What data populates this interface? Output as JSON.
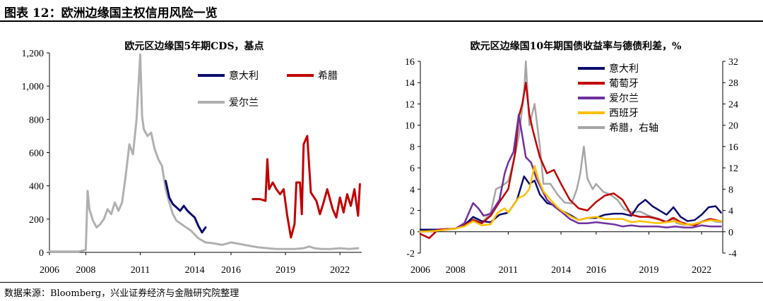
{
  "header": {
    "title": "图表 12：欧洲边缘国主权信用风险一览"
  },
  "footer": {
    "source": "数据来源：Bloomberg，兴业证券经济与金融研究院整理"
  },
  "chart_data": [
    {
      "type": "line",
      "title": "欧元区边缘国5年期CDS，基点",
      "x_ticks": [
        "2006",
        "2008",
        "2011",
        "2014",
        "2016",
        "2019",
        "2022"
      ],
      "xlim": [
        2006,
        2023.2
      ],
      "ylim": [
        0,
        1200
      ],
      "y_ticks": [
        "0",
        "200",
        "400",
        "600",
        "800",
        "1,000",
        "1,200"
      ],
      "legend": {
        "placement": "top-right",
        "layout": "two-column"
      },
      "series": [
        {
          "name": "意大利",
          "color": "#0c0c6e",
          "x": [
            2012.4,
            2012.6,
            2012.8,
            2013.0,
            2013.2,
            2013.4,
            2013.6,
            2013.8,
            2014.0,
            2014.2,
            2014.4,
            2014.6
          ],
          "y": [
            430,
            330,
            290,
            270,
            250,
            280,
            250,
            230,
            210,
            160,
            120,
            150
          ]
        },
        {
          "name": "希腊",
          "color": "#c00000",
          "x": [
            2017.2,
            2017.6,
            2017.9,
            2018.0,
            2018.1,
            2018.3,
            2018.5,
            2018.7,
            2018.9,
            2019.1,
            2019.3,
            2019.5,
            2019.6,
            2019.8,
            2019.9,
            2020.0,
            2020.2,
            2020.4,
            2020.7,
            2020.9,
            2021.1,
            2021.3,
            2021.6,
            2021.8,
            2022.0,
            2022.2,
            2022.4,
            2022.6,
            2022.8,
            2023.0,
            2023.1
          ],
          "y": [
            320,
            320,
            310,
            560,
            380,
            420,
            380,
            350,
            380,
            220,
            90,
            170,
            420,
            420,
            230,
            650,
            700,
            360,
            310,
            230,
            300,
            380,
            260,
            210,
            330,
            240,
            350,
            280,
            380,
            220,
            410
          ]
        },
        {
          "name": "爱尔兰",
          "color": "#b0b0b0",
          "x": [
            2006.0,
            2007.0,
            2007.6,
            2008.0,
            2008.1,
            2008.2,
            2008.4,
            2008.6,
            2008.8,
            2009.0,
            2009.2,
            2009.4,
            2009.6,
            2009.8,
            2010.0,
            2010.2,
            2010.4,
            2010.6,
            2010.8,
            2011.0,
            2011.1,
            2011.2,
            2011.4,
            2011.6,
            2011.8,
            2012.0,
            2012.2,
            2012.4,
            2012.6,
            2012.8,
            2013.0,
            2013.4,
            2013.8,
            2014.2,
            2014.6,
            2015.0,
            2015.5,
            2016.0,
            2016.5,
            2017.0,
            2017.5,
            2018.0,
            2018.5,
            2019.0,
            2019.5,
            2020.0,
            2020.3,
            2020.6,
            2021.0,
            2021.5,
            2022.0,
            2022.5,
            2023.0
          ],
          "y": [
            5,
            5,
            5,
            15,
            370,
            260,
            190,
            150,
            170,
            200,
            260,
            230,
            300,
            250,
            300,
            460,
            650,
            590,
            800,
            1190,
            820,
            740,
            700,
            720,
            620,
            560,
            520,
            380,
            300,
            230,
            190,
            160,
            130,
            85,
            60,
            55,
            45,
            60,
            50,
            40,
            30,
            25,
            20,
            20,
            20,
            25,
            35,
            25,
            20,
            20,
            25,
            20,
            25
          ]
        }
      ]
    },
    {
      "type": "line",
      "title": "欧元区边缘国10年期国债收益率与德债利差，%",
      "x_ticks": [
        "2006",
        "2008",
        "2011",
        "2014",
        "2016",
        "2019",
        "2022"
      ],
      "xlim": [
        2006,
        2023.2
      ],
      "ylim": [
        -2,
        16
      ],
      "y_ticks": [
        "-2",
        "0",
        "2",
        "4",
        "6",
        "8",
        "10",
        "12",
        "14",
        "16"
      ],
      "ylim_right": [
        -4,
        32
      ],
      "y_ticks_right": [
        "-4",
        "0",
        "4",
        "8",
        "12",
        "16",
        "20",
        "24",
        "28",
        "32"
      ],
      "legend": {
        "placement": "top-right",
        "layout": "single-column"
      },
      "series": [
        {
          "name": "意大利",
          "color": "#0c0c6e",
          "axis": "left",
          "x": [
            2006.0,
            2007.0,
            2008.0,
            2008.5,
            2009.0,
            2009.5,
            2010.0,
            2010.5,
            2011.0,
            2011.5,
            2011.9,
            2012.2,
            2012.5,
            2012.8,
            2013.2,
            2013.6,
            2014.0,
            2014.5,
            2015.0,
            2015.5,
            2016.0,
            2016.5,
            2017.0,
            2017.5,
            2018.0,
            2018.4,
            2018.8,
            2019.2,
            2019.6,
            2020.0,
            2020.4,
            2020.8,
            2021.2,
            2021.6,
            2022.0,
            2022.4,
            2022.8,
            2023.1
          ],
          "y": [
            0.2,
            0.2,
            0.3,
            0.6,
            1.4,
            1.0,
            0.9,
            1.6,
            1.8,
            3.0,
            5.2,
            4.5,
            4.8,
            3.5,
            2.7,
            2.5,
            2.0,
            1.6,
            1.1,
            1.3,
            1.3,
            1.6,
            1.7,
            1.7,
            1.5,
            2.5,
            3.0,
            2.4,
            2.0,
            1.6,
            2.3,
            1.4,
            1.0,
            1.1,
            1.6,
            2.3,
            2.4,
            1.8
          ]
        },
        {
          "name": "葡萄牙",
          "color": "#c00000",
          "axis": "left",
          "x": [
            2006.0,
            2006.5,
            2007.0,
            2008.0,
            2008.5,
            2009.0,
            2009.5,
            2010.0,
            2010.5,
            2011.0,
            2011.4,
            2011.6,
            2011.8,
            2012.0,
            2012.2,
            2012.4,
            2012.8,
            2013.2,
            2013.6,
            2014.0,
            2014.5,
            2015.0,
            2015.5,
            2016.0,
            2016.5,
            2017.0,
            2017.5,
            2018.0,
            2018.5,
            2019.0,
            2019.5,
            2020.0,
            2020.4,
            2020.8,
            2021.2,
            2021.6,
            2022.0,
            2022.5,
            2023.1
          ],
          "y": [
            -0.2,
            -0.6,
            0.2,
            0.3,
            0.6,
            1.1,
            0.8,
            1.5,
            2.8,
            4.0,
            7.5,
            10.8,
            12.0,
            14.0,
            11.0,
            9.5,
            7.0,
            5.5,
            5.8,
            4.5,
            3.0,
            2.2,
            2.0,
            2.8,
            3.4,
            3.6,
            3.0,
            1.6,
            1.4,
            1.4,
            1.2,
            0.9,
            1.3,
            0.9,
            0.7,
            0.6,
            0.9,
            1.2,
            1.0
          ]
        },
        {
          "name": "爱尔兰",
          "color": "#7030a0",
          "axis": "left",
          "x": [
            2006.0,
            2007.0,
            2008.0,
            2008.5,
            2009.0,
            2009.3,
            2009.6,
            2010.0,
            2010.5,
            2010.8,
            2011.0,
            2011.3,
            2011.6,
            2011.8,
            2012.0,
            2012.3,
            2012.6,
            2012.9,
            2013.2,
            2013.6,
            2014.0,
            2014.5,
            2015.0,
            2015.5,
            2016.0,
            2016.5,
            2017.0,
            2017.5,
            2018.0,
            2018.5,
            2019.0,
            2019.5,
            2020.0,
            2020.5,
            2021.0,
            2021.5,
            2022.0,
            2022.5,
            2023.1
          ],
          "y": [
            0.0,
            0.1,
            0.3,
            0.8,
            2.7,
            2.2,
            1.5,
            1.7,
            3.0,
            5.5,
            6.5,
            7.5,
            11.0,
            9.0,
            7.0,
            6.5,
            5.0,
            4.0,
            3.0,
            2.4,
            1.9,
            1.2,
            0.8,
            0.8,
            0.9,
            0.8,
            0.7,
            0.5,
            0.6,
            0.5,
            0.5,
            0.5,
            0.4,
            0.5,
            0.4,
            0.4,
            0.6,
            0.5,
            0.5
          ]
        },
        {
          "name": "西班牙",
          "color": "#ffc000",
          "axis": "left",
          "x": [
            2006.0,
            2007.0,
            2008.0,
            2008.5,
            2009.0,
            2009.5,
            2010.0,
            2010.4,
            2010.8,
            2011.0,
            2011.3,
            2011.6,
            2011.9,
            2012.2,
            2012.5,
            2012.7,
            2013.0,
            2013.4,
            2013.8,
            2014.2,
            2014.6,
            2015.0,
            2015.5,
            2016.0,
            2016.5,
            2017.0,
            2017.5,
            2018.0,
            2018.5,
            2019.0,
            2019.5,
            2020.0,
            2020.5,
            2021.0,
            2021.5,
            2022.0,
            2022.5,
            2023.1
          ],
          "y": [
            0.0,
            0.1,
            0.3,
            0.5,
            1.0,
            0.6,
            0.7,
            1.8,
            2.2,
            1.8,
            2.5,
            3.2,
            3.4,
            4.0,
            6.2,
            5.0,
            3.8,
            3.0,
            2.3,
            1.8,
            1.4,
            1.1,
            1.3,
            1.4,
            1.2,
            1.2,
            1.2,
            0.9,
            1.0,
            0.9,
            0.8,
            0.9,
            1.0,
            0.7,
            0.7,
            0.9,
            1.1,
            1.0
          ]
        },
        {
          "name": "希腊，右轴",
          "color": "#a6a6a6",
          "axis": "right",
          "x": [
            2006.0,
            2007.0,
            2008.0,
            2008.5,
            2009.0,
            2009.5,
            2010.0,
            2010.3,
            2010.6,
            2011.0,
            2011.3,
            2011.6,
            2011.9,
            2012.0,
            2012.2,
            2012.5,
            2012.8,
            2013.0,
            2013.4,
            2013.8,
            2014.2,
            2014.6,
            2014.9,
            2015.1,
            2015.3,
            2015.5,
            2015.8,
            2016.0,
            2016.4,
            2016.8,
            2017.2,
            2017.6,
            2018.0,
            2018.5,
            2019.0,
            2019.5,
            2020.0,
            2020.3,
            2020.6,
            2021.0,
            2021.5,
            2022.0,
            2022.4,
            2022.8,
            2023.1
          ],
          "y": [
            0.3,
            0.3,
            0.6,
            1.5,
            2.5,
            1.7,
            3.5,
            8.0,
            8.5,
            9.5,
            13.0,
            18.0,
            26.0,
            32.0,
            20.0,
            24.0,
            16.0,
            9.0,
            9.0,
            7.0,
            5.5,
            5.3,
            8.0,
            11.0,
            16.0,
            10.0,
            8.0,
            9.0,
            7.5,
            7.0,
            6.0,
            4.2,
            3.7,
            3.8,
            3.0,
            2.5,
            1.9,
            2.6,
            1.6,
            1.3,
            1.4,
            1.9,
            2.4,
            1.9,
            1.8
          ]
        }
      ]
    }
  ]
}
